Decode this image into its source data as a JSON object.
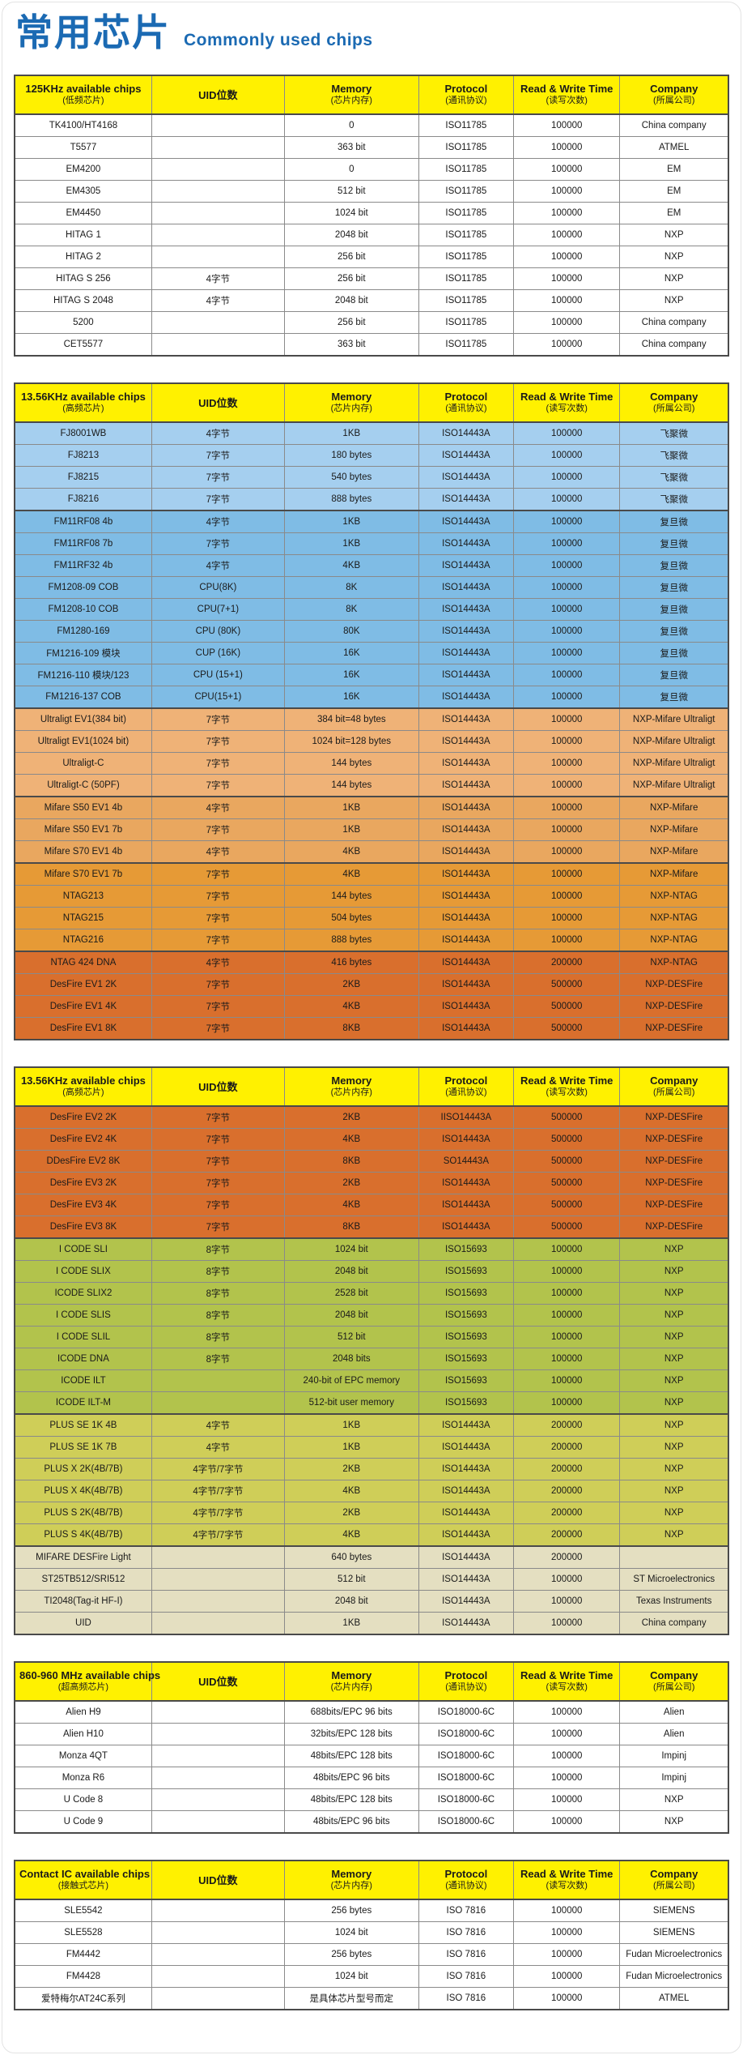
{
  "page": {
    "title_cn": "常用芯片",
    "title_en": "Commonly used chips"
  },
  "colors": {
    "title_blue": "#1B6AB3",
    "header_bg": "#FFF100",
    "white": "#FFFFFF",
    "blue1": "#A5CFEF",
    "blue2": "#7FBCE5",
    "orange1": "#EFB277",
    "orange2": "#E9A75F",
    "orange3": "#E69A36",
    "orange4": "#D96F2D",
    "green1": "#B2C34C",
    "green2": "#CFCE58",
    "beige": "#E4DFC1"
  },
  "columns": {
    "uid": "UID位数",
    "memory_en": "Memory",
    "memory_sub": "(芯片内存)",
    "protocol_en": "Protocol",
    "protocol_sub": "(通讯协议)",
    "rw_en": "Read & Write Time",
    "rw_sub": "(读写次数)",
    "company_en": "Company",
    "company_sub": "(所属公司)"
  },
  "tables": [
    {
      "title": "125KHz available chips",
      "subtitle": "(低频芯片)",
      "rows": [
        [
          "TK4100/HT4168",
          "",
          "0",
          "ISO11785",
          "100000",
          "China company",
          "white"
        ],
        [
          "T5577",
          "",
          "363 bit",
          "ISO11785",
          "100000",
          "ATMEL",
          "white"
        ],
        [
          "EM4200",
          "",
          "0",
          "ISO11785",
          "100000",
          "EM",
          "white"
        ],
        [
          "EM4305",
          "",
          "512 bit",
          "ISO11785",
          "100000",
          "EM",
          "white"
        ],
        [
          "EM4450",
          "",
          "1024 bit",
          "ISO11785",
          "100000",
          "EM",
          "white"
        ],
        [
          "HITAG 1",
          "",
          "2048 bit",
          "ISO11785",
          "100000",
          "NXP",
          "white"
        ],
        [
          "HITAG 2",
          "",
          "256 bit",
          "ISO11785",
          "100000",
          "NXP",
          "white"
        ],
        [
          "HITAG S 256",
          "4字节",
          "256 bit",
          "ISO11785",
          "100000",
          "NXP",
          "white"
        ],
        [
          "HITAG S 2048",
          "4字节",
          "2048 bit",
          "ISO11785",
          "100000",
          "NXP",
          "white"
        ],
        [
          "5200",
          "",
          "256 bit",
          "ISO11785",
          "100000",
          "China company",
          "white"
        ],
        [
          "CET5577",
          "",
          "363 bit",
          "ISO11785",
          "100000",
          "China company",
          "white"
        ]
      ]
    },
    {
      "title": "13.56KHz available chips",
      "subtitle": "(高频芯片)",
      "rows": [
        [
          "FJ8001WB",
          "4字节",
          "1KB",
          "ISO14443A",
          "100000",
          "飞聚微",
          "blue1"
        ],
        [
          "FJ8213",
          "7字节",
          "180 bytes",
          "ISO14443A",
          "100000",
          "飞聚微",
          "blue1"
        ],
        [
          "FJ8215",
          "7字节",
          "540 bytes",
          "ISO14443A",
          "100000",
          "飞聚微",
          "blue1"
        ],
        [
          "FJ8216",
          "7字节",
          "888 bytes",
          "ISO14443A",
          "100000",
          "飞聚微",
          "blue1"
        ],
        [
          "FM11RF08 4b",
          "4字节",
          "1KB",
          "ISO14443A",
          "100000",
          "复旦微",
          "blue2"
        ],
        [
          "FM11RF08 7b",
          "7字节",
          "1KB",
          "ISO14443A",
          "100000",
          "复旦微",
          "blue2"
        ],
        [
          "FM11RF32 4b",
          "4字节",
          "4KB",
          "ISO14443A",
          "100000",
          "复旦微",
          "blue2"
        ],
        [
          "FM1208-09 COB",
          "CPU(8K)",
          "8K",
          "ISO14443A",
          "100000",
          "复旦微",
          "blue2"
        ],
        [
          "FM1208-10 COB",
          "CPU(7+1)",
          "8K",
          "ISO14443A",
          "100000",
          "复旦微",
          "blue2"
        ],
        [
          "FM1280-169",
          "CPU (80K)",
          "80K",
          "ISO14443A",
          "100000",
          "复旦微",
          "blue2"
        ],
        [
          "FM1216-109 模块",
          "CUP (16K)",
          "16K",
          "ISO14443A",
          "100000",
          "复旦微",
          "blue2"
        ],
        [
          "FM1216-110 模块/123",
          "CPU (15+1)",
          "16K",
          "ISO14443A",
          "100000",
          "复旦微",
          "blue2"
        ],
        [
          "FM1216-137 COB",
          "CPU(15+1)",
          "16K",
          "ISO14443A",
          "100000",
          "复旦微",
          "blue2"
        ],
        [
          "Ultraligt EV1(384 bit)",
          "7字节",
          "384 bit=48 bytes",
          "ISO14443A",
          "100000",
          "NXP-Mifare Ultraligt",
          "orange1"
        ],
        [
          "Ultraligt EV1(1024 bit)",
          "7字节",
          "1024 bit=128 bytes",
          "ISO14443A",
          "100000",
          "NXP-Mifare Ultraligt",
          "orange1"
        ],
        [
          "Ultraligt-C",
          "7字节",
          "144 bytes",
          "ISO14443A",
          "100000",
          "NXP-Mifare Ultraligt",
          "orange1"
        ],
        [
          "Ultraligt-C (50PF)",
          "7字节",
          "144 bytes",
          "ISO14443A",
          "100000",
          "NXP-Mifare Ultraligt",
          "orange1"
        ],
        [
          "Mifare S50 EV1  4b",
          "4字节",
          "1KB",
          "ISO14443A",
          "100000",
          "NXP-Mifare",
          "orange2"
        ],
        [
          "Mifare S50 EV1 7b",
          "7字节",
          "1KB",
          "ISO14443A",
          "100000",
          "NXP-Mifare",
          "orange2"
        ],
        [
          "Mifare S70 EV1 4b",
          "4字节",
          "4KB",
          "ISO14443A",
          "100000",
          "NXP-Mifare",
          "orange2"
        ],
        [
          "Mifare S70 EV1 7b",
          "7字节",
          "4KB",
          "ISO14443A",
          "100000",
          "NXP-Mifare",
          "orange3"
        ],
        [
          "NTAG213",
          "7字节",
          "144 bytes",
          "ISO14443A",
          "100000",
          "NXP-NTAG",
          "orange3"
        ],
        [
          "NTAG215",
          "7字节",
          "504 bytes",
          "ISO14443A",
          "100000",
          "NXP-NTAG",
          "orange3"
        ],
        [
          "NTAG216",
          "7字节",
          "888 bytes",
          "ISO14443A",
          "100000",
          "NXP-NTAG",
          "orange3"
        ],
        [
          "NTAG 424 DNA",
          "4字节",
          "416 bytes",
          "ISO14443A",
          "200000",
          "NXP-NTAG",
          "orange4"
        ],
        [
          "DesFire EV1 2K",
          "7字节",
          "2KB",
          "ISO14443A",
          "500000",
          "NXP-DESFire",
          "orange4"
        ],
        [
          "DesFire EV1 4K",
          "7字节",
          "4KB",
          "ISO14443A",
          "500000",
          "NXP-DESFire",
          "orange4"
        ],
        [
          "DesFire EV1 8K",
          "7字节",
          "8KB",
          "ISO14443A",
          "500000",
          "NXP-DESFire",
          "orange4"
        ]
      ]
    },
    {
      "title": "13.56KHz available chips",
      "subtitle": "(高频芯片)",
      "rows": [
        [
          "DesFire EV2 2K",
          "7字节",
          "2KB",
          "IISO14443A",
          "500000",
          "NXP-DESFire",
          "orange4"
        ],
        [
          "DesFire EV2 4K",
          "7字节",
          "4KB",
          "ISO14443A",
          "500000",
          "NXP-DESFire",
          "orange4"
        ],
        [
          "DDesFire EV2 8K",
          "7字节",
          "8KB",
          "SO14443A",
          "500000",
          "NXP-DESFire",
          "orange4"
        ],
        [
          "DesFire EV3 2K",
          "7字节",
          "2KB",
          "ISO14443A",
          "500000",
          "NXP-DESFire",
          "orange4"
        ],
        [
          "DesFire EV3 4K",
          "7字节",
          "4KB",
          "ISO14443A",
          "500000",
          "NXP-DESFire",
          "orange4"
        ],
        [
          "DesFire EV3 8K",
          "7字节",
          "8KB",
          "ISO14443A",
          "500000",
          "NXP-DESFire",
          "orange4"
        ],
        [
          "I CODE SLI",
          "8字节",
          "1024 bit",
          "ISO15693",
          "100000",
          "NXP",
          "green1"
        ],
        [
          "I CODE SLIX",
          "8字节",
          "2048 bit",
          "ISO15693",
          "100000",
          "NXP",
          "green1"
        ],
        [
          "ICODE SLIX2",
          "8字节",
          "2528 bit",
          "ISO15693",
          "100000",
          "NXP",
          "green1"
        ],
        [
          "I CODE SLIS",
          "8字节",
          "2048 bit",
          "ISO15693",
          "100000",
          "NXP",
          "green1"
        ],
        [
          "I CODE SLIL",
          "8字节",
          "512 bit",
          "ISO15693",
          "100000",
          "NXP",
          "green1"
        ],
        [
          "ICODE DNA",
          "8字节",
          "2048 bits",
          "ISO15693",
          "100000",
          "NXP",
          "green1"
        ],
        [
          "ICODE ILT",
          "",
          "240-bit of EPC memory",
          "ISO15693",
          "100000",
          "NXP",
          "green1"
        ],
        [
          "ICODE ILT-M",
          "",
          "512-bit user memory",
          "ISO15693",
          "100000",
          "NXP",
          "green1"
        ],
        [
          "PLUS SE 1K 4B",
          "4字节",
          "1KB",
          "ISO14443A",
          "200000",
          "NXP",
          "green2"
        ],
        [
          "PLUS SE 1K 7B",
          "4字节",
          "1KB",
          "ISO14443A",
          "200000",
          "NXP",
          "green2"
        ],
        [
          "PLUS X 2K(4B/7B)",
          "4字节/7字节",
          "2KB",
          "ISO14443A",
          "200000",
          "NXP",
          "green2"
        ],
        [
          "PLUS X 4K(4B/7B)",
          "4字节/7字节",
          "4KB",
          "ISO14443A",
          "200000",
          "NXP",
          "green2"
        ],
        [
          "PLUS S 2K(4B/7B)",
          "4字节/7字节",
          "2KB",
          "ISO14443A",
          "200000",
          "NXP",
          "green2"
        ],
        [
          "PLUS S 4K(4B/7B)",
          "4字节/7字节",
          "4KB",
          "ISO14443A",
          "200000",
          "NXP",
          "green2"
        ],
        [
          "MIFARE DESFire Light",
          "",
          "640 bytes",
          "ISO14443A",
          "200000",
          "",
          "beige"
        ],
        [
          "ST25TB512/SRI512",
          "",
          "512 bit",
          "ISO14443A",
          "100000",
          "ST Microelectronics",
          "beige"
        ],
        [
          "TI2048(Tag-it HF-I)",
          "",
          "2048 bit",
          "ISO14443A",
          "100000",
          "Texas Instruments",
          "beige"
        ],
        [
          "UID",
          "",
          "1KB",
          "ISO14443A",
          "100000",
          "China company",
          "beige"
        ]
      ]
    },
    {
      "title": "860-960 MHz available chips",
      "subtitle": "(超高频芯片)",
      "rows": [
        [
          "Alien H9",
          "",
          "688bits/EPC 96 bits",
          "ISO18000-6C",
          "100000",
          "Alien",
          "white"
        ],
        [
          "Alien H10",
          "",
          "32bits/EPC 128 bits",
          "ISO18000-6C",
          "100000",
          "Alien",
          "white"
        ],
        [
          "Monza 4QT",
          "",
          "48bits/EPC 128 bits",
          "ISO18000-6C",
          "100000",
          "Impinj",
          "white"
        ],
        [
          "Monza R6",
          "",
          "48bits/EPC 96 bits",
          "ISO18000-6C",
          "100000",
          "Impinj",
          "white"
        ],
        [
          "U Code 8",
          "",
          "48bits/EPC 128 bits",
          "ISO18000-6C",
          "100000",
          "NXP",
          "white"
        ],
        [
          "U Code 9",
          "",
          "48bits/EPC 96 bits",
          "ISO18000-6C",
          "100000",
          "NXP",
          "white"
        ]
      ]
    },
    {
      "title": "Contact IC available chips",
      "subtitle": "(接触式芯片)",
      "rows": [
        [
          "SLE5542",
          "",
          "256 bytes",
          "ISO 7816",
          "100000",
          "SIEMENS",
          "white"
        ],
        [
          "SLE5528",
          "",
          "1024 bit",
          "ISO 7816",
          "100000",
          "SIEMENS",
          "white"
        ],
        [
          "FM4442",
          "",
          "256 bytes",
          "ISO 7816",
          "100000",
          "Fudan Microelectronics",
          "white"
        ],
        [
          "FM4428",
          "",
          "1024 bit",
          "ISO 7816",
          "100000",
          "Fudan Microelectronics",
          "white"
        ],
        [
          "爱特梅尔AT24C系列",
          "",
          "是具体芯片型号而定",
          "ISO 7816",
          "100000",
          "ATMEL",
          "white"
        ]
      ]
    }
  ]
}
